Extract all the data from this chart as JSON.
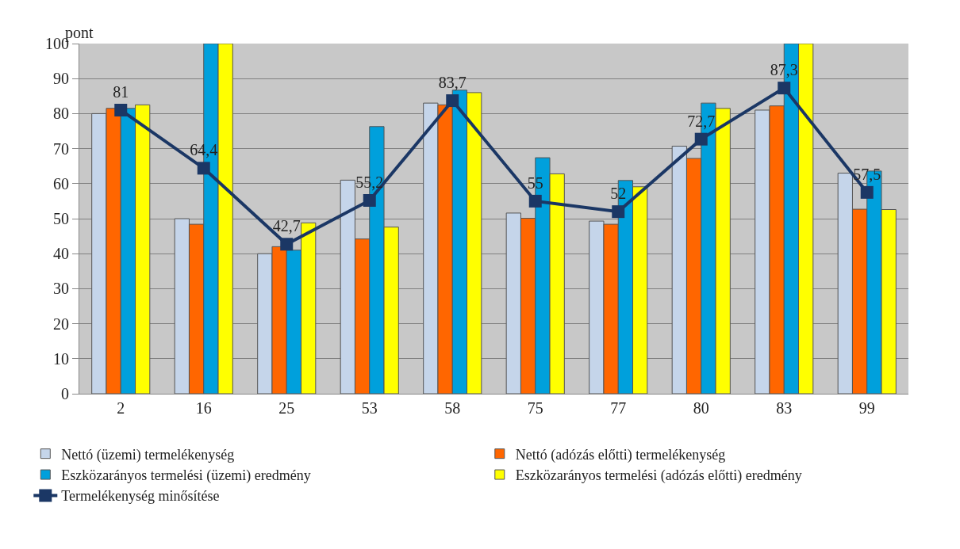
{
  "chart_data": {
    "type": "bar",
    "ylabel": "pont",
    "categories": [
      "2",
      "16",
      "25",
      "53",
      "58",
      "75",
      "77",
      "80",
      "83",
      "99"
    ],
    "series": [
      {
        "name": "Nettó (üzemi) termelékenység",
        "color": "#c5d5ea",
        "values": [
          80,
          50,
          40,
          61,
          83,
          51.6,
          49.3,
          70.7,
          81,
          63
        ]
      },
      {
        "name": "Nettó (adózás előtti) termelékenység",
        "color": "#ff6600",
        "values": [
          81.5,
          48.4,
          42,
          44.2,
          82.5,
          50.1,
          48.4,
          67.2,
          82.2,
          52.7
        ]
      },
      {
        "name": "Eszközarányos termelési (üzemi) eredmény",
        "color": "#00a0dc",
        "values": [
          81.5,
          100,
          41,
          76.3,
          86.7,
          67.4,
          60.9,
          83,
          100,
          63.6
        ]
      },
      {
        "name": "Eszközarányos termelési (adózás előtti) eredmény",
        "color": "#ffff00",
        "values": [
          82.5,
          100,
          48.8,
          47.6,
          86,
          62.8,
          59.1,
          81.5,
          100,
          52.6
        ]
      },
      {
        "name": "Termelékenység minősítése",
        "type": "line",
        "color": "#1b3765",
        "values": [
          81,
          64.4,
          42.7,
          55.2,
          83.7,
          55,
          52,
          72.7,
          87.3,
          57.5
        ],
        "value_labels": [
          "81",
          "64,4",
          "42,7",
          "55,2",
          "83,7",
          "55",
          "52",
          "72,7",
          "87,3",
          "57,5"
        ]
      }
    ],
    "ylim": [
      0,
      100
    ],
    "yticks": [
      0,
      10,
      20,
      30,
      40,
      50,
      60,
      70,
      80,
      90,
      100
    ],
    "grid": "y",
    "legend": "bottom",
    "marker": "square",
    "line_style": "solid"
  }
}
